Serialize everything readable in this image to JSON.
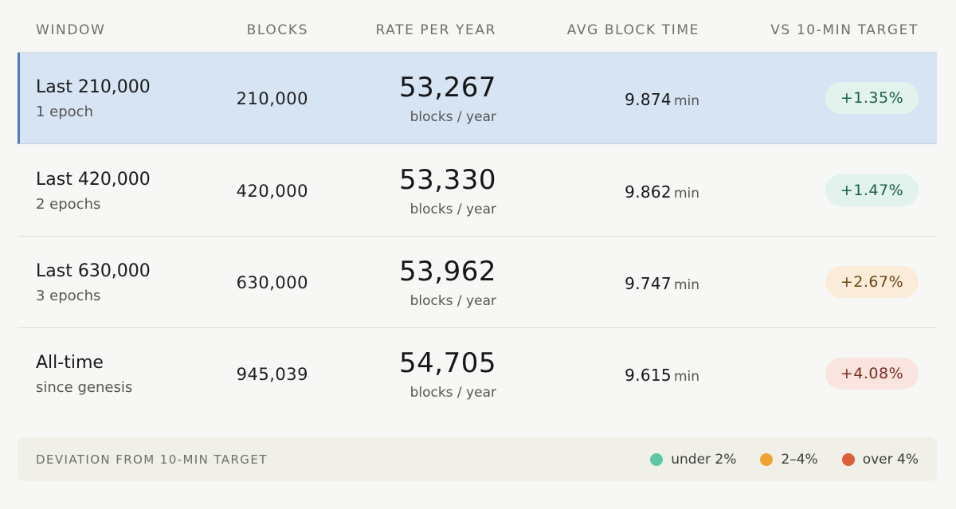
{
  "header": {
    "window": "WINDOW",
    "blocks": "BLOCKS",
    "rate": "RATE PER YEAR",
    "avg": "AVG BLOCK TIME",
    "vs": "VS 10-MIN TARGET"
  },
  "rows": [
    {
      "title": "Last 210,000",
      "sub": "1 epoch",
      "blocks": "210,000",
      "rate": "53,267",
      "rate_unit": "blocks / year",
      "avg": "9.874",
      "avg_unit": "min",
      "deviation": "+1.35%",
      "status": "green",
      "selected": true
    },
    {
      "title": "Last 420,000",
      "sub": "2 epochs",
      "blocks": "420,000",
      "rate": "53,330",
      "rate_unit": "blocks / year",
      "avg": "9.862",
      "avg_unit": "min",
      "deviation": "+1.47%",
      "status": "green",
      "selected": false
    },
    {
      "title": "Last 630,000",
      "sub": "3 epochs",
      "blocks": "630,000",
      "rate": "53,962",
      "rate_unit": "blocks / year",
      "avg": "9.747",
      "avg_unit": "min",
      "deviation": "+2.67%",
      "status": "amber",
      "selected": false
    },
    {
      "title": "All-time",
      "sub": "since genesis",
      "blocks": "945,039",
      "rate": "54,705",
      "rate_unit": "blocks / year",
      "avg": "9.615",
      "avg_unit": "min",
      "deviation": "+4.08%",
      "status": "red",
      "selected": false
    }
  ],
  "legend": {
    "title": "DEVIATION FROM 10-MIN TARGET",
    "items": [
      {
        "label": "under 2%",
        "color": "#5ec8a4"
      },
      {
        "label": "2–4%",
        "color": "#eea233"
      },
      {
        "label": "over 4%",
        "color": "#dd5e3b"
      }
    ]
  },
  "colors": {
    "selected_bg": "#d7e4f4",
    "selected_border": "#4b7bc2"
  }
}
